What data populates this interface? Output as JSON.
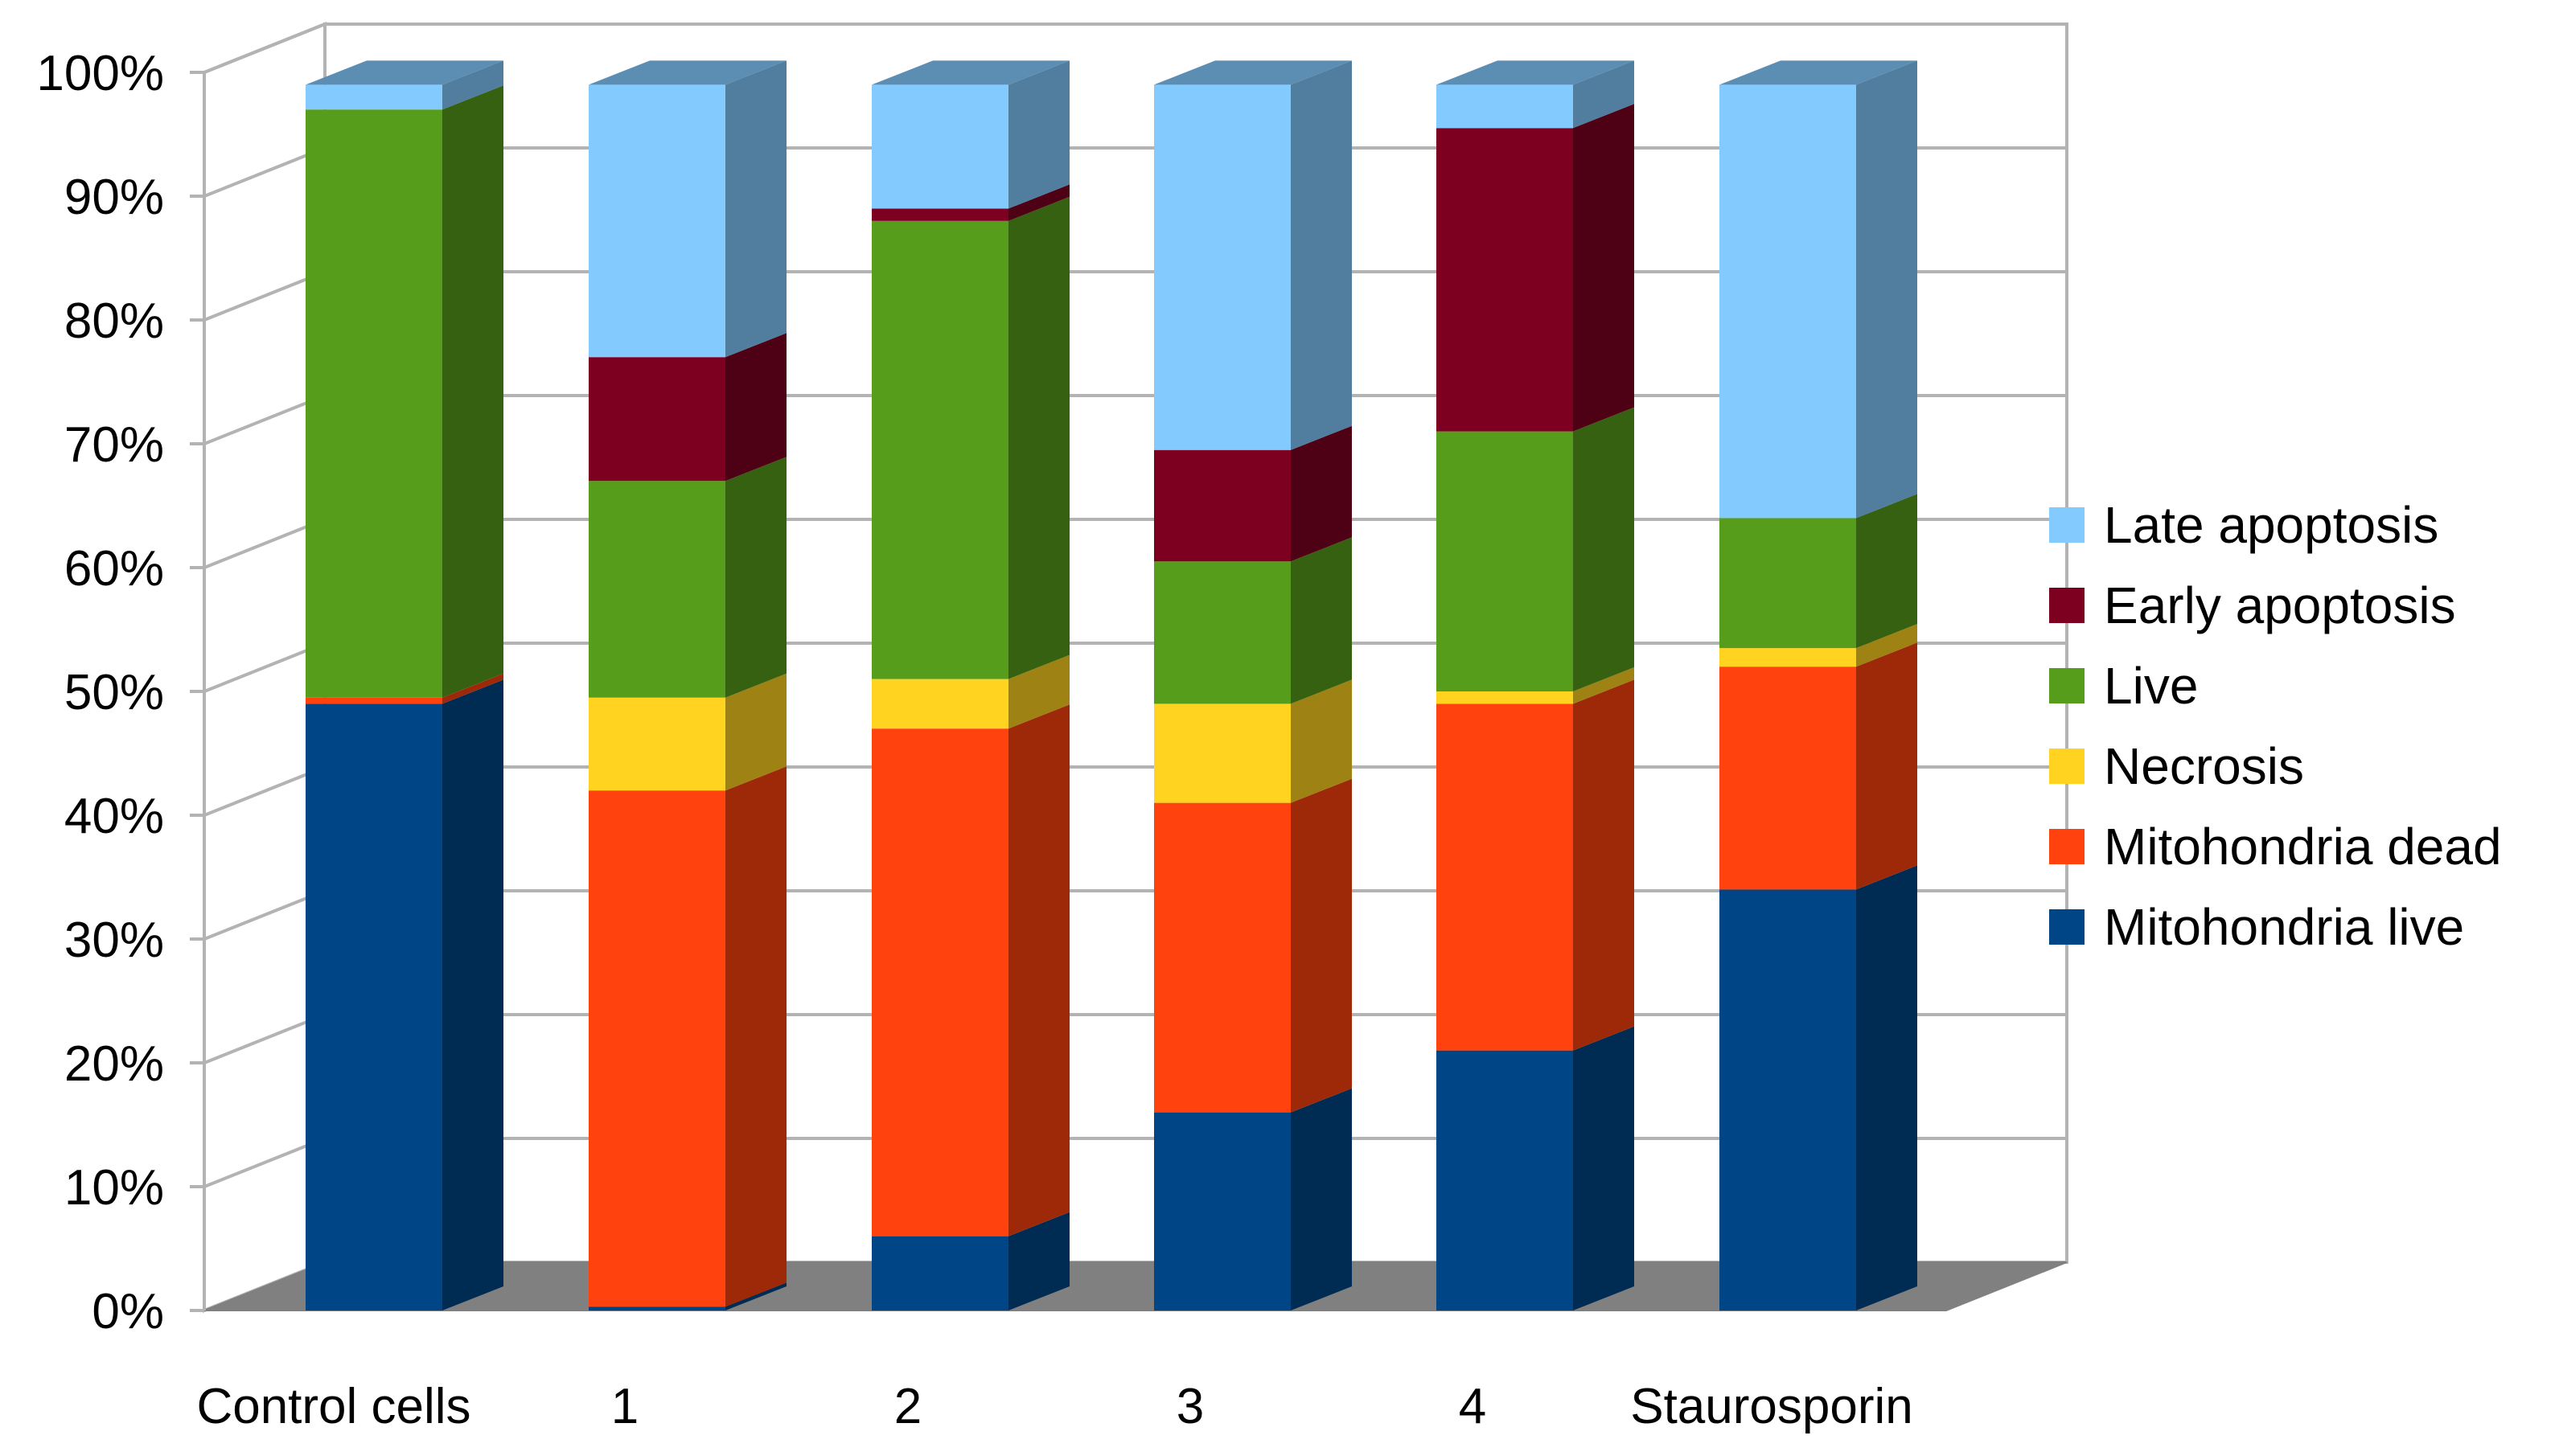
{
  "chart_data": {
    "type": "bar",
    "stacked": true,
    "percent": true,
    "three_d": true,
    "title": "",
    "xlabel": "",
    "ylabel": "",
    "ylim": [
      0,
      100
    ],
    "yticks": [
      "0%",
      "10%",
      "20%",
      "30%",
      "40%",
      "50%",
      "60%",
      "70%",
      "80%",
      "90%",
      "100%"
    ],
    "grid": true,
    "legend_position": "right",
    "categories": [
      "Control cells",
      "1",
      "2",
      "3",
      "4",
      "Staurosporin"
    ],
    "series": [
      {
        "name": "Mitohondria live",
        "color": "#004586",
        "values": [
          49,
          0.3,
          6,
          16,
          21,
          34
        ]
      },
      {
        "name": "Mitohondria dead",
        "color": "#ff420e",
        "values": [
          0.5,
          41.7,
          41,
          25,
          28,
          18
        ]
      },
      {
        "name": "Necrosis",
        "color": "#ffd320",
        "values": [
          0,
          7.5,
          4,
          8,
          1,
          1.5
        ]
      },
      {
        "name": "Live",
        "color": "#579d1c",
        "values": [
          47.5,
          17.5,
          37,
          11.5,
          21,
          10.5
        ]
      },
      {
        "name": "Early apoptosis",
        "color": "#7e0021",
        "values": [
          0,
          10,
          1,
          9,
          24.5,
          0
        ]
      },
      {
        "name": "Late apoptosis",
        "color": "#83caff",
        "values": [
          2,
          22,
          10,
          29.5,
          3.5,
          35
        ]
      }
    ],
    "legend_order": [
      "Late apoptosis",
      "Early apoptosis",
      "Live",
      "Necrosis",
      "Mitohondria dead",
      "Mitohondria live"
    ]
  }
}
